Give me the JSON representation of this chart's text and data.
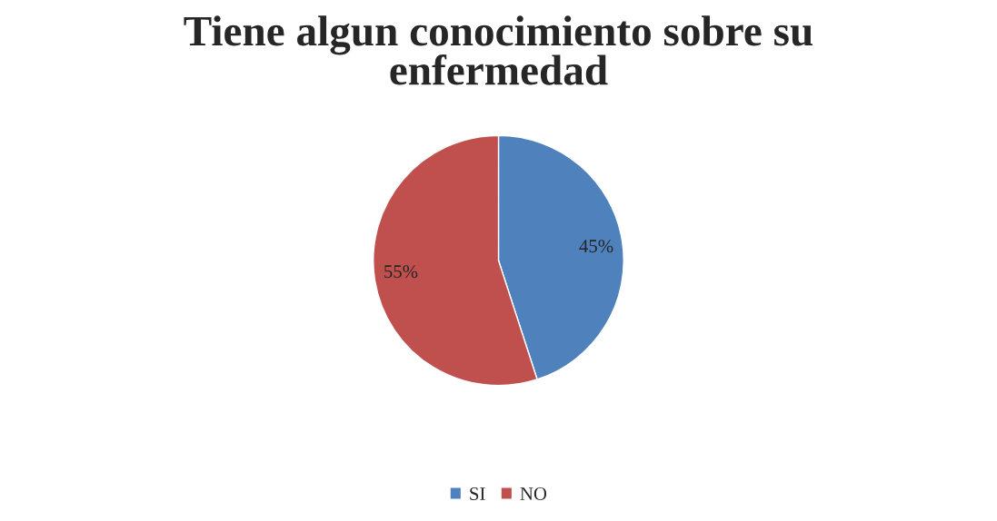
{
  "chart_data": {
    "type": "pie",
    "title": "Tiene algun conocimiento sobre su\nenfermedad",
    "categories": [
      "SI",
      "NO"
    ],
    "values": [
      45,
      55
    ],
    "colors": [
      "#4f81bd",
      "#c0504d"
    ],
    "value_labels": [
      "45%",
      "55%"
    ],
    "legend": "bottom"
  }
}
